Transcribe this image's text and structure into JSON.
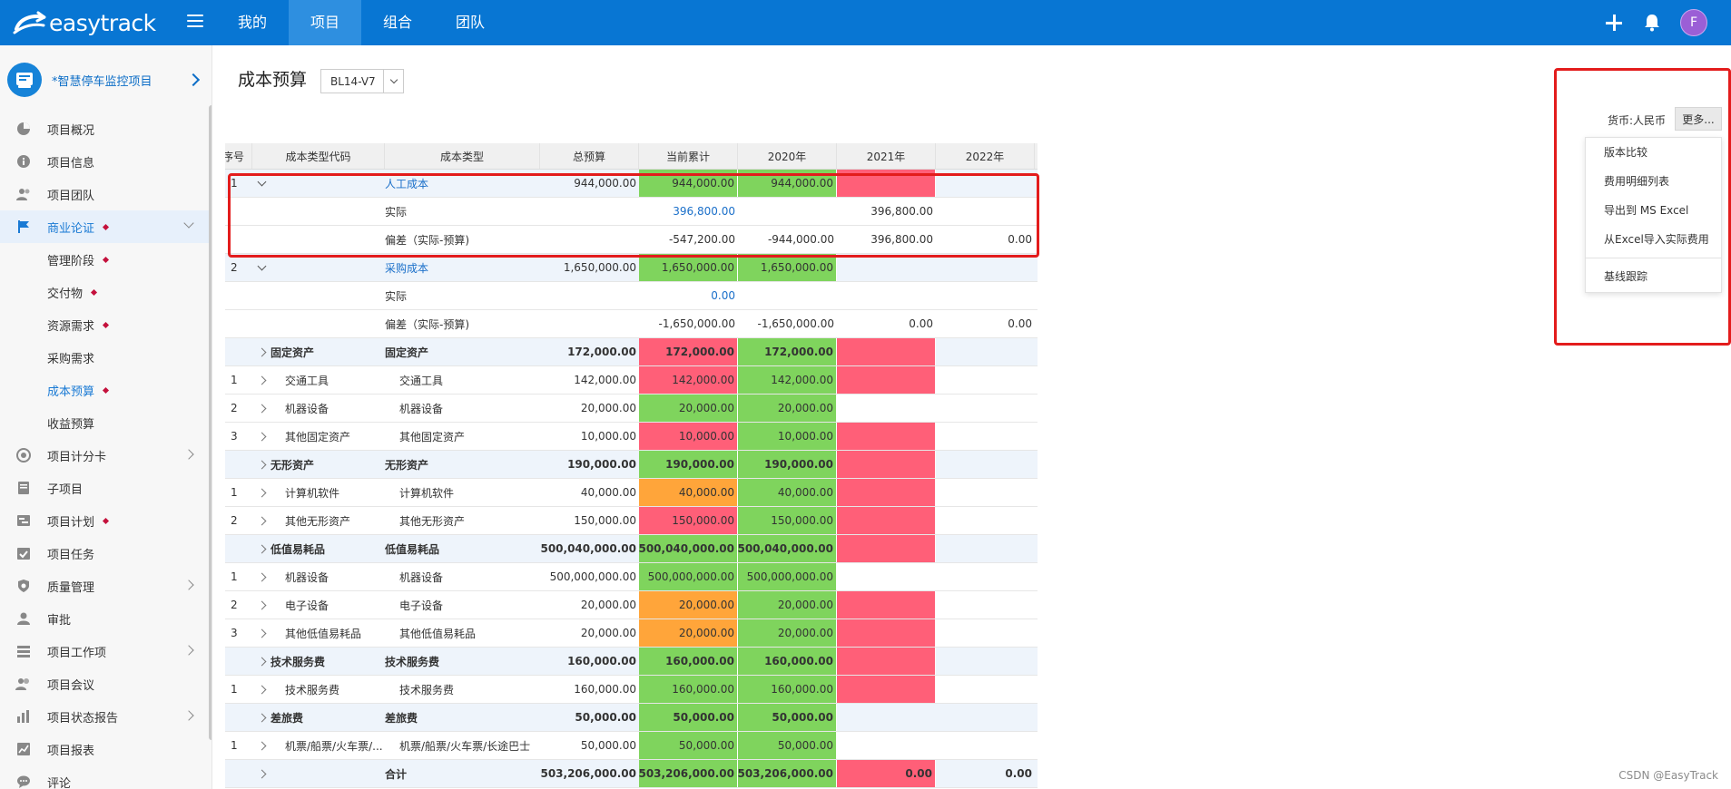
{
  "topbar": {
    "brand": "easytrack",
    "nav": [
      {
        "label": "我的",
        "active": false
      },
      {
        "label": "项目",
        "active": true
      },
      {
        "label": "组合",
        "active": false
      },
      {
        "label": "团队",
        "active": false
      }
    ],
    "avatar_initial": "F",
    "color": "#0876d3",
    "active_tab_color": "#2e8fe0"
  },
  "sidebar": {
    "project_name": "*智慧停车监控项目",
    "items": [
      {
        "label": "项目概况",
        "icon": "pie-chart-icon",
        "sub": false,
        "dot": false,
        "chevron": ""
      },
      {
        "label": "项目信息",
        "icon": "info-icon",
        "sub": false,
        "dot": false,
        "chevron": ""
      },
      {
        "label": "项目团队",
        "icon": "team-icon",
        "sub": false,
        "dot": false,
        "chevron": ""
      },
      {
        "label": "商业论证",
        "icon": "flag-icon",
        "sub": false,
        "dot": true,
        "chevron": "down",
        "active": true
      },
      {
        "label": "管理阶段",
        "icon": "",
        "sub": true,
        "dot": true,
        "chevron": ""
      },
      {
        "label": "交付物",
        "icon": "",
        "sub": true,
        "dot": true,
        "chevron": ""
      },
      {
        "label": "资源需求",
        "icon": "",
        "sub": true,
        "dot": true,
        "chevron": ""
      },
      {
        "label": "采购需求",
        "icon": "",
        "sub": true,
        "dot": false,
        "chevron": ""
      },
      {
        "label": "成本预算",
        "icon": "",
        "sub": true,
        "dot": true,
        "chevron": "",
        "current": true
      },
      {
        "label": "收益预算",
        "icon": "",
        "sub": true,
        "dot": false,
        "chevron": ""
      },
      {
        "label": "项目计分卡",
        "icon": "target-icon",
        "sub": false,
        "dot": false,
        "chevron": "right"
      },
      {
        "label": "子项目",
        "icon": "document-icon",
        "sub": false,
        "dot": false,
        "chevron": ""
      },
      {
        "label": "项目计划",
        "icon": "plan-icon",
        "sub": false,
        "dot": true,
        "chevron": ""
      },
      {
        "label": "项目任务",
        "icon": "calendar-check-icon",
        "sub": false,
        "dot": false,
        "chevron": ""
      },
      {
        "label": "质量管理",
        "icon": "shield-icon",
        "sub": false,
        "dot": false,
        "chevron": "right"
      },
      {
        "label": "审批",
        "icon": "user-icon",
        "sub": false,
        "dot": false,
        "chevron": ""
      },
      {
        "label": "项目工作项",
        "icon": "list-icon",
        "sub": false,
        "dot": false,
        "chevron": "right"
      },
      {
        "label": "项目会议",
        "icon": "meeting-icon",
        "sub": false,
        "dot": false,
        "chevron": ""
      },
      {
        "label": "项目状态报告",
        "icon": "bar-chart-icon",
        "sub": false,
        "dot": false,
        "chevron": "right"
      },
      {
        "label": "项目报表",
        "icon": "line-chart-icon",
        "sub": false,
        "dot": false,
        "chevron": ""
      },
      {
        "label": "评论",
        "icon": "comment-icon",
        "sub": false,
        "dot": false,
        "chevron": ""
      }
    ]
  },
  "page": {
    "title": "成本预算",
    "version": "BL14-V7",
    "currency": "货币:人民币",
    "more_label": "更多...",
    "menu": [
      "版本比较",
      "费用明细列表",
      "导出到 MS Excel",
      "从Excel导入实际费用",
      "基线跟踪"
    ],
    "watermark": "CSDN @EasyTrack"
  },
  "table": {
    "headers": {
      "seq": "序号",
      "code": "成本类型代码",
      "type": "成本类型",
      "total": "总预算",
      "current": "当前累计",
      "y2020": "2020年",
      "y2021": "2021年",
      "y2022": "2022年"
    },
    "rows": [
      {
        "seq": "1",
        "exp": "down",
        "code": "",
        "type": "人工成本",
        "total": "944,000.00",
        "cur": "944,000.00",
        "y20": "944,000.00",
        "y21": "",
        "y22": "",
        "style": "top",
        "cls": {
          "cur": "green",
          "y20": "green",
          "y21": "red"
        }
      },
      {
        "seq": "",
        "exp": "",
        "code": "",
        "type": "实际",
        "total": "",
        "cur": "396,800.00",
        "y20": "",
        "y21": "396,800.00",
        "y22": "",
        "style": "actual"
      },
      {
        "seq": "",
        "exp": "",
        "code": "",
        "type": "偏差（实际-预算)",
        "total": "",
        "cur": "-547,200.00",
        "y20": "-944,000.00",
        "y21": "396,800.00",
        "y22": "0.00",
        "style": "plain"
      },
      {
        "seq": "2",
        "exp": "down",
        "code": "",
        "type": "采购成本",
        "total": "1,650,000.00",
        "cur": "1,650,000.00",
        "y20": "1,650,000.00",
        "y21": "",
        "y22": "",
        "style": "top",
        "cls": {
          "cur": "green",
          "y20": "green"
        }
      },
      {
        "seq": "",
        "exp": "",
        "code": "",
        "type": "实际",
        "total": "",
        "cur": "0.00",
        "y20": "",
        "y21": "",
        "y22": "",
        "style": "actual"
      },
      {
        "seq": "",
        "exp": "",
        "code": "",
        "type": "偏差（实际-预算)",
        "total": "",
        "cur": "-1,650,000.00",
        "y20": "-1,650,000.00",
        "y21": "0.00",
        "y22": "0.00",
        "style": "plain"
      },
      {
        "seq": "",
        "exp": "right",
        "code": "固定资产",
        "type": "固定资产",
        "total": "172,000.00",
        "cur": "172,000.00",
        "y20": "172,000.00",
        "y21": "",
        "y22": "",
        "style": "group",
        "cls": {
          "cur": "red",
          "y20": "green",
          "y21": "red"
        }
      },
      {
        "seq": "1",
        "exp": "right",
        "code": "交通工具",
        "type": "交通工具",
        "total": "142,000.00",
        "cur": "142,000.00",
        "y20": "142,000.00",
        "y21": "",
        "y22": "",
        "style": "item",
        "cls": {
          "cur": "red",
          "y20": "green",
          "y21": "red"
        }
      },
      {
        "seq": "2",
        "exp": "right",
        "code": "机器设备",
        "type": "机器设备",
        "total": "20,000.00",
        "cur": "20,000.00",
        "y20": "20,000.00",
        "y21": "",
        "y22": "",
        "style": "item",
        "cls": {
          "cur": "green",
          "y20": "green"
        }
      },
      {
        "seq": "3",
        "exp": "right",
        "code": "其他固定资产",
        "type": "其他固定资产",
        "total": "10,000.00",
        "cur": "10,000.00",
        "y20": "10,000.00",
        "y21": "",
        "y22": "",
        "style": "item",
        "cls": {
          "cur": "red",
          "y20": "green",
          "y21": "red"
        }
      },
      {
        "seq": "",
        "exp": "right",
        "code": "无形资产",
        "type": "无形资产",
        "total": "190,000.00",
        "cur": "190,000.00",
        "y20": "190,000.00",
        "y21": "",
        "y22": "",
        "style": "group",
        "cls": {
          "cur": "green",
          "y20": "green",
          "y21": "red"
        }
      },
      {
        "seq": "1",
        "exp": "right",
        "code": "计算机软件",
        "type": "计算机软件",
        "total": "40,000.00",
        "cur": "40,000.00",
        "y20": "40,000.00",
        "y21": "",
        "y22": "",
        "style": "item",
        "cls": {
          "cur": "orange",
          "y20": "green",
          "y21": "red"
        }
      },
      {
        "seq": "2",
        "exp": "right",
        "code": "其他无形资产",
        "type": "其他无形资产",
        "total": "150,000.00",
        "cur": "150,000.00",
        "y20": "150,000.00",
        "y21": "",
        "y22": "",
        "style": "item",
        "cls": {
          "cur": "red",
          "y20": "green",
          "y21": "red"
        }
      },
      {
        "seq": "",
        "exp": "right",
        "code": "低值易耗品",
        "type": "低值易耗品",
        "total": "500,040,000.00",
        "cur": "500,040,000.00",
        "y20": "500,040,000.00",
        "y21": "",
        "y22": "",
        "style": "group",
        "cls": {
          "cur": "green",
          "y20": "green",
          "y21": "red"
        }
      },
      {
        "seq": "1",
        "exp": "right",
        "code": "机器设备",
        "type": "机器设备",
        "total": "500,000,000.00",
        "cur": "500,000,000.00",
        "y20": "500,000,000.00",
        "y21": "",
        "y22": "",
        "style": "item",
        "cls": {
          "cur": "green",
          "y20": "green"
        }
      },
      {
        "seq": "2",
        "exp": "right",
        "code": "电子设备",
        "type": "电子设备",
        "total": "20,000.00",
        "cur": "20,000.00",
        "y20": "20,000.00",
        "y21": "",
        "y22": "",
        "style": "item",
        "cls": {
          "cur": "orange",
          "y20": "green",
          "y21": "red"
        }
      },
      {
        "seq": "3",
        "exp": "right",
        "code": "其他低值易耗品",
        "type": "其他低值易耗品",
        "total": "20,000.00",
        "cur": "20,000.00",
        "y20": "20,000.00",
        "y21": "",
        "y22": "",
        "style": "item",
        "cls": {
          "cur": "orange",
          "y20": "green",
          "y21": "red"
        }
      },
      {
        "seq": "",
        "exp": "right",
        "code": "技术服务费",
        "type": "技术服务费",
        "total": "160,000.00",
        "cur": "160,000.00",
        "y20": "160,000.00",
        "y21": "",
        "y22": "",
        "style": "group",
        "cls": {
          "cur": "green",
          "y20": "green",
          "y21": "red"
        }
      },
      {
        "seq": "1",
        "exp": "right",
        "code": "技术服务费",
        "type": "技术服务费",
        "total": "160,000.00",
        "cur": "160,000.00",
        "y20": "160,000.00",
        "y21": "",
        "y22": "",
        "style": "item",
        "cls": {
          "cur": "green",
          "y20": "green",
          "y21": "red"
        }
      },
      {
        "seq": "",
        "exp": "right",
        "code": "差旅费",
        "type": "差旅费",
        "total": "50,000.00",
        "cur": "50,000.00",
        "y20": "50,000.00",
        "y21": "",
        "y22": "",
        "style": "group",
        "cls": {
          "cur": "green",
          "y20": "green"
        }
      },
      {
        "seq": "1",
        "exp": "right",
        "code": "机票/船票/火车票/...",
        "type": "机票/船票/火车票/长途巴士",
        "total": "50,000.00",
        "cur": "50,000.00",
        "y20": "50,000.00",
        "y21": "",
        "y22": "",
        "style": "item",
        "cls": {
          "cur": "green",
          "y20": "green"
        }
      },
      {
        "seq": "",
        "exp": "right",
        "code": "",
        "type": "合计",
        "total": "503,206,000.00",
        "cur": "503,206,000.00",
        "y20": "503,206,000.00",
        "y21": "0.00",
        "y22": "0.00",
        "style": "total",
        "cls": {
          "cur": "green",
          "y20": "green",
          "y21": "red"
        }
      }
    ]
  }
}
